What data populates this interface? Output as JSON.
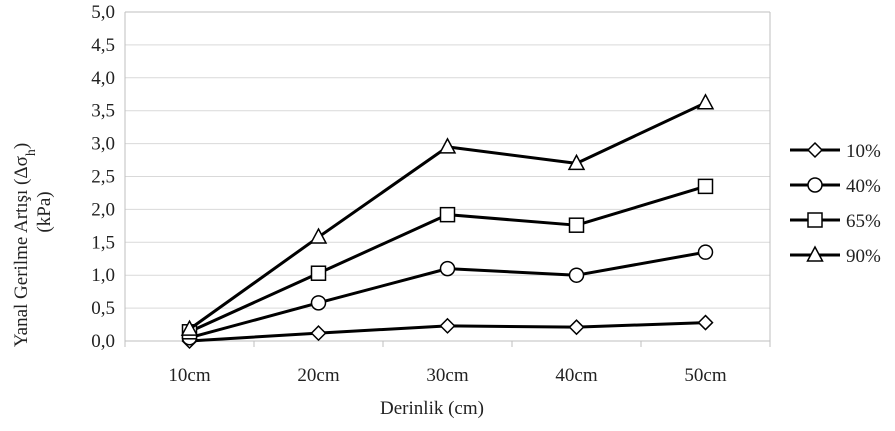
{
  "chart_data": {
    "type": "line",
    "title": "",
    "xlabel": "Derinlik (cm)",
    "ylabel_line1_prefix": "Yanal Gerilme Artışı (Δσ",
    "ylabel_line1_subscript": "h",
    "ylabel_line1_suffix": ")",
    "ylabel_line2": "(kPa)",
    "categories": [
      "10cm",
      "20cm",
      "30cm",
      "40cm",
      "50cm"
    ],
    "ylim": [
      0,
      5.0
    ],
    "yticks": [
      "0,0",
      "0,5",
      "1,0",
      "1,5",
      "2,0",
      "2,5",
      "3,0",
      "3,5",
      "4,0",
      "4,5",
      "5,0"
    ],
    "grid": true,
    "legend_position": "right",
    "series": [
      {
        "name": "10%",
        "marker": "diamond",
        "values": [
          0.0,
          0.12,
          0.23,
          0.21,
          0.28
        ]
      },
      {
        "name": "40%",
        "marker": "circle",
        "values": [
          0.05,
          0.58,
          1.1,
          1.0,
          1.35
        ]
      },
      {
        "name": "65%",
        "marker": "square",
        "values": [
          0.14,
          1.03,
          1.92,
          1.76,
          2.35
        ]
      },
      {
        "name": "90%",
        "marker": "triangle",
        "values": [
          0.18,
          1.58,
          2.95,
          2.7,
          3.62
        ]
      }
    ],
    "colors": {
      "line": "#000000",
      "grid": "#d9d9d9",
      "axis": "#bfbfbf"
    }
  }
}
